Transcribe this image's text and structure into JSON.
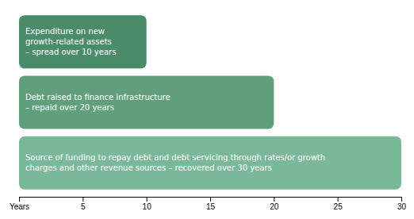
{
  "chart_data": {
    "type": "bar",
    "orientation": "horizontal",
    "categories": [
      "Expenditure on new\ngrowth-related assets\n– spread over 10 years",
      "Debt raised to finance infrastructure\n– repaid over 20 years",
      "Source of funding to repay debt and debt servicing through rates/or growth\ncharges and other revenue sources – recovered over 30 years"
    ],
    "values": [
      10,
      20,
      30
    ],
    "colors": [
      "#4a8c6a",
      "#5fa07a",
      "#7ab89a"
    ],
    "xlim": [
      0,
      30
    ],
    "xticks": [
      {
        "value": 0,
        "label": "Years"
      },
      5,
      10,
      15,
      20,
      25,
      30
    ]
  }
}
